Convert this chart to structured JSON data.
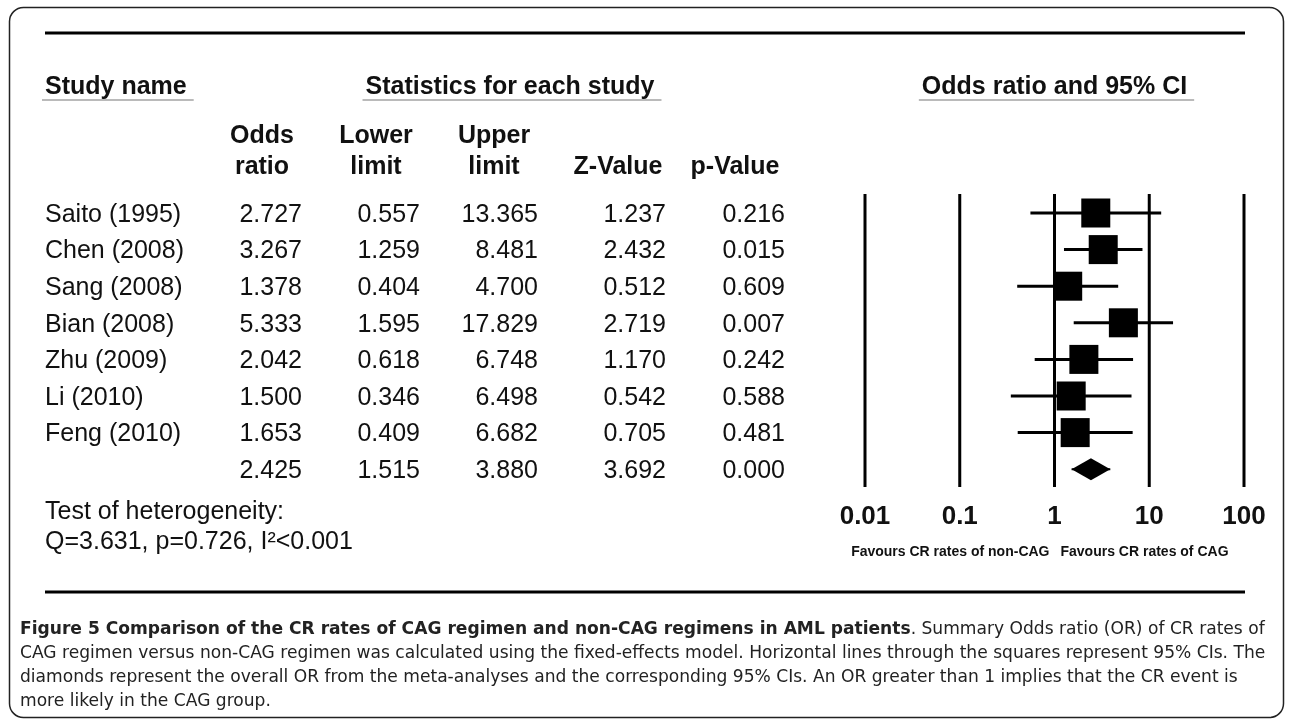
{
  "chart_data": [
    {
      "type": "heatmap",
      "title": "Statistics for each study",
      "ylabel": "Study name",
      "categories": [
        "Odds ratio",
        "Lower limit",
        "Upper limit",
        "Z-Value",
        "p-Value"
      ],
      "y_categories": [
        "Saito (1995)",
        "Chen (2008)",
        "Sang (2008)",
        "Bian (2008)",
        "Zhu (2009)",
        "Li (2010)",
        "Feng (2010)",
        null
      ],
      "cells": [
        [
          2.727,
          0.557,
          13.365,
          1.237,
          0.216
        ],
        [
          3.267,
          1.259,
          8.481,
          2.432,
          0.015
        ],
        [
          1.378,
          0.404,
          4.7,
          0.512,
          0.609
        ],
        [
          5.333,
          1.595,
          17.829,
          2.719,
          0.007
        ],
        [
          2.042,
          0.618,
          6.748,
          1.17,
          0.242
        ],
        [
          1.5,
          0.346,
          6.498,
          0.542,
          0.588
        ],
        [
          1.653,
          0.409,
          6.682,
          0.705,
          0.481
        ],
        [
          2.425,
          1.515,
          3.88,
          3.692,
          0.0
        ]
      ],
      "cell_labels": [
        [
          "2.727",
          "0.557",
          "13.365",
          "1.237",
          "0.216"
        ],
        [
          "3.267",
          "1.259",
          "8.481",
          "2.432",
          "0.015"
        ],
        [
          "1.378",
          "0.404",
          "4.700",
          "0.512",
          "0.609"
        ],
        [
          "5.333",
          "1.595",
          "17.829",
          "2.719",
          "0.007"
        ],
        [
          "2.042",
          "0.618",
          "6.748",
          "1.170",
          "0.242"
        ],
        [
          "1.500",
          "0.346",
          "6.498",
          "0.542",
          "0.588"
        ],
        [
          "1.653",
          "0.409",
          "6.682",
          "0.705",
          "0.481"
        ],
        [
          "2.425",
          "1.515",
          "3.880",
          "3.692",
          "0.000"
        ]
      ],
      "data_labels": true,
      "annotations": [
        "Test of heterogeneity:",
        "Q=3.631, p=0.726, I²<0.001",
        "Figure 5 Comparison of the CR rates of CAG regimen and non-CAG regimens in AML patients. Summary Odds ratio (OR) of CR rates of CAG regimen versus non-CAG regimen was calculated using the fixed-effects model. Horizontal lines through the squares represent 95% CIs. The diamonds represent the overall OR from the meta-analyses and the corresponding 95% CIs. An OR greater than 1 implies that the CR event is more likely in the CAG group."
      ]
    },
    {
      "type": "scatter",
      "orientation": "horizontal",
      "title": "Odds ratio and 95% CI",
      "categories": [
        null,
        null,
        null,
        null,
        null,
        null,
        null,
        null
      ],
      "series": [
        {
          "color": "#000000",
          "marker": "square",
          "values": [
            2.727,
            3.267,
            1.378,
            5.333,
            2.042,
            1.5,
            1.653,
            null
          ],
          "errors": [
            [
              0.557,
              13.365
            ],
            [
              1.259,
              8.481
            ],
            [
              0.404,
              4.7
            ],
            [
              1.595,
              17.829
            ],
            [
              0.618,
              6.748
            ],
            [
              0.346,
              6.498
            ],
            [
              0.409,
              6.682
            ],
            null
          ]
        },
        {
          "color": "#000000",
          "marker": "diamond",
          "values": [
            null,
            null,
            null,
            null,
            null,
            null,
            null,
            2.425
          ],
          "errors": [
            null,
            null,
            null,
            null,
            null,
            null,
            null,
            [
              1.515,
              3.88
            ]
          ]
        }
      ],
      "log": "x",
      "xlim": [
        0.01,
        100
      ],
      "xticks": [
        0.01,
        0.1,
        1,
        10,
        100
      ],
      "grid": "x",
      "annotations": [
        "Favours CR rates of non-CAG",
        "Favours CR rates of CAG"
      ]
    }
  ]
}
